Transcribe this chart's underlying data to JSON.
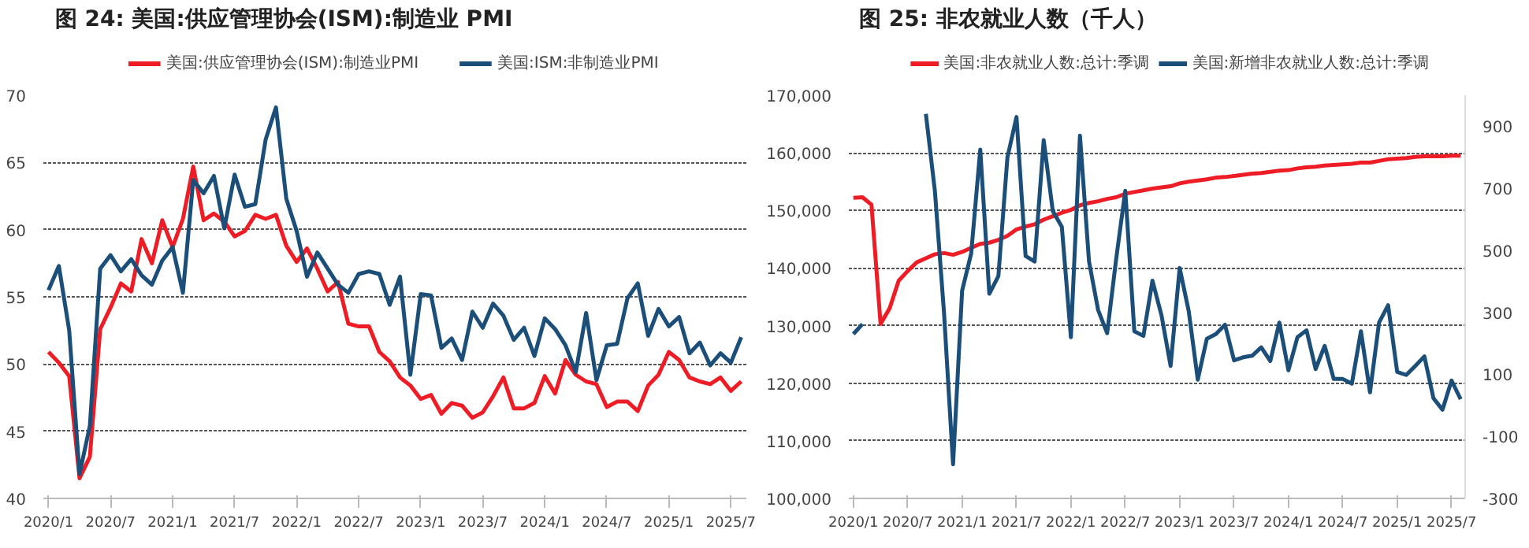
{
  "chart_data": [
    {
      "type": "line",
      "title": "图 24: 美国:供应管理协会(ISM):制造业 PMI",
      "categories": [
        "2020/1",
        null,
        null,
        null,
        null,
        null,
        "2020/7",
        null,
        null,
        null,
        null,
        null,
        "2021/1",
        null,
        null,
        null,
        null,
        null,
        "2021/7",
        null,
        null,
        null,
        null,
        null,
        "2022/1",
        null,
        null,
        null,
        null,
        null,
        "2022/7",
        null,
        null,
        null,
        null,
        null,
        "2023/1",
        null,
        null,
        null,
        null,
        null,
        "2023/7",
        null,
        null,
        null,
        null,
        null,
        "2024/1",
        null,
        null,
        null,
        null,
        null,
        "2024/7",
        null,
        null,
        null,
        null,
        null,
        "2025/1",
        null,
        null,
        null,
        null,
        null,
        "2025/7",
        null
      ],
      "series": [
        {
          "name": "美国:供应管理协会(ISM):制造业PMI",
          "color": "#ee1c25",
          "values": [
            50.9,
            50.1,
            49.1,
            41.5,
            43.1,
            52.6,
            54.2,
            56.0,
            55.4,
            59.3,
            57.5,
            60.7,
            58.7,
            60.8,
            64.7,
            60.7,
            61.2,
            60.6,
            59.5,
            59.9,
            61.1,
            60.8,
            61.1,
            58.8,
            57.6,
            58.6,
            57.1,
            55.4,
            56.1,
            53.0,
            52.8,
            52.8,
            50.9,
            50.2,
            49.0,
            48.4,
            47.4,
            47.7,
            46.3,
            47.1,
            46.9,
            46.0,
            46.4,
            47.6,
            49.0,
            46.7,
            46.7,
            47.1,
            49.1,
            47.8,
            50.3,
            49.2,
            48.7,
            48.5,
            46.8,
            47.2,
            47.2,
            46.5,
            48.4,
            49.2,
            50.9,
            50.3,
            49.0,
            48.7,
            48.5,
            49.0,
            48.0,
            48.7
          ]
        },
        {
          "name": "美国:ISM:非制造业PMI",
          "color": "#1b4f7a",
          "values": [
            55.5,
            57.3,
            52.5,
            41.8,
            45.4,
            57.1,
            58.1,
            56.9,
            57.8,
            56.6,
            55.9,
            57.7,
            58.7,
            55.3,
            63.7,
            62.7,
            64.0,
            60.1,
            64.1,
            61.7,
            61.9,
            66.7,
            69.1,
            62.3,
            59.9,
            56.5,
            58.3,
            57.1,
            55.9,
            55.3,
            56.7,
            56.9,
            56.7,
            54.4,
            56.5,
            49.2,
            55.2,
            55.1,
            51.2,
            51.9,
            50.3,
            53.9,
            52.7,
            54.5,
            53.6,
            51.8,
            52.7,
            50.6,
            53.4,
            52.6,
            51.4,
            49.4,
            53.8,
            48.8,
            51.4,
            51.5,
            54.9,
            56.0,
            52.1,
            54.1,
            52.8,
            53.5,
            50.8,
            51.6,
            49.9,
            50.8,
            50.1,
            52.0
          ]
        }
      ],
      "ylim": [
        40,
        70
      ],
      "yticks": [
        40,
        45,
        50,
        55,
        60,
        65,
        70
      ],
      "grid": "y",
      "legend": "top"
    },
    {
      "type": "line",
      "title": "图 25: 非农就业人数（千人）",
      "categories": [
        "2020/1",
        null,
        null,
        null,
        null,
        null,
        "2020/7",
        null,
        null,
        null,
        null,
        null,
        "2021/1",
        null,
        null,
        null,
        null,
        null,
        "2021/7",
        null,
        null,
        null,
        null,
        null,
        "2022/1",
        null,
        null,
        null,
        null,
        null,
        "2022/7",
        null,
        null,
        null,
        null,
        null,
        "2023/1",
        null,
        null,
        null,
        null,
        null,
        "2023/7",
        null,
        null,
        null,
        null,
        null,
        "2024/1",
        null,
        null,
        null,
        null,
        null,
        "2024/7",
        null,
        null,
        null,
        null,
        null,
        "2025/1",
        null,
        null,
        null,
        null,
        null,
        "2025/7",
        null
      ],
      "series": [
        {
          "name": "美国:非农就业人数:总计:季调",
          "color": "#ee1c25",
          "values": [
            152200,
            152300,
            151000,
            130300,
            133000,
            137800,
            139500,
            141000,
            141700,
            142400,
            142600,
            142300,
            142800,
            143500,
            144200,
            144400,
            144900,
            145600,
            146700,
            147200,
            147600,
            148400,
            149000,
            149600,
            150100,
            150900,
            151300,
            151600,
            152000,
            152300,
            152900,
            153200,
            153500,
            153800,
            154000,
            154200,
            154700,
            155000,
            155200,
            155400,
            155700,
            155800,
            156000,
            156200,
            156400,
            156500,
            156700,
            156900,
            157000,
            157300,
            157500,
            157600,
            157800,
            157900,
            158000,
            158100,
            158300,
            158300,
            158600,
            158900,
            159000,
            159100,
            159300,
            159400,
            159400,
            159400,
            159500,
            159500
          ]
        },
        {
          "name": "美国:新增非农就业人数:总计:季调",
          "color": "#1b4f7a",
          "axis": "y2",
          "values": [
            230,
            262,
            null,
            null,
            null,
            null,
            null,
            null,
            940,
            690,
            300,
            -190,
            370,
            490,
            825,
            360,
            417,
            800,
            930,
            482,
            464,
            855,
            627,
            576,
            220,
            870,
            464,
            308,
            233,
            473,
            692,
            239,
            224,
            402,
            290,
            127,
            443,
            304,
            83,
            215,
            230,
            260,
            145,
            155,
            160,
            187,
            143,
            267,
            113,
            220,
            242,
            117,
            192,
            85,
            85,
            70,
            239,
            42,
            267,
            323,
            108,
            98,
            127,
            158,
            23,
            -14,
            80,
            20
          ]
        }
      ],
      "ylim": [
        100000,
        170000
      ],
      "yticks": [
        {
          "value": 100000,
          "label": "100,000"
        },
        {
          "value": 110000,
          "label": "110,000"
        },
        {
          "value": 120000,
          "label": "120,000"
        },
        {
          "value": 130000,
          "label": "130,000"
        },
        {
          "value": 140000,
          "label": "140,000"
        },
        {
          "value": 150000,
          "label": "150,000"
        },
        {
          "value": 160000,
          "label": "160,000"
        },
        {
          "value": 170000,
          "label": "170,000"
        }
      ],
      "y2lim": [
        -300,
        1000
      ],
      "y2ticks": [
        -300,
        -100,
        100,
        300,
        500,
        700,
        900
      ],
      "grid": "y",
      "legend": "top"
    }
  ]
}
